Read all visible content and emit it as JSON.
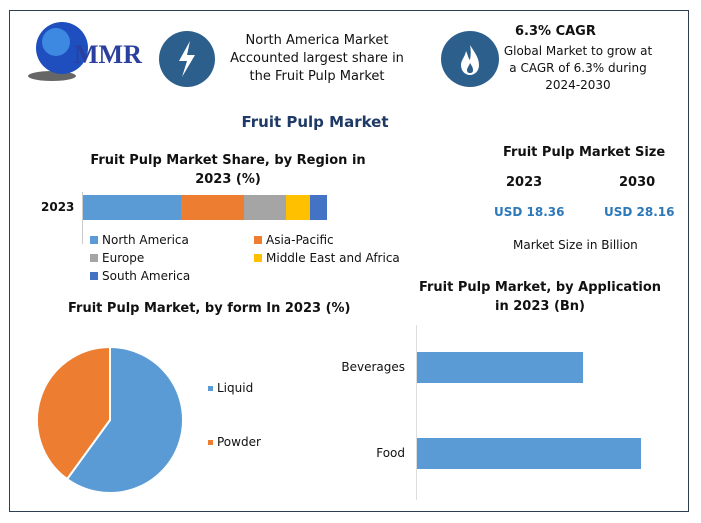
{
  "header": {
    "logo_text": "MMR",
    "box1_text": "North America Market Accounted largest share in the Fruit Pulp Market",
    "box1_icon": "lightning-icon",
    "box2_title": "6.3% CAGR",
    "box2_text": "Global Market to grow at a CAGR of 6.3% during 2024-2030",
    "box2_icon": "flame-icon"
  },
  "title": "Fruit Pulp Market",
  "market_size": {
    "title": "Fruit Pulp Market Size",
    "years": [
      "2023",
      "2030"
    ],
    "values": [
      "USD 18.36",
      "USD 28.16"
    ],
    "note": "Market Size in Billion"
  },
  "colors": {
    "accent": "#2c5f8c",
    "value": "#2c78b8"
  },
  "chart_data": [
    {
      "type": "bar",
      "orientation": "horizontal-stacked",
      "title": "Fruit Pulp Market Share, by Region in 2023 (%)",
      "categories": [
        "2023"
      ],
      "series": [
        {
          "name": "North America",
          "values": [
            40
          ],
          "color": "#5b9bd5"
        },
        {
          "name": "Asia-Pacific",
          "values": [
            26
          ],
          "color": "#ed7d31"
        },
        {
          "name": "Europe",
          "values": [
            17
          ],
          "color": "#a5a5a5"
        },
        {
          "name": "Middle East and Africa",
          "values": [
            10
          ],
          "color": "#ffc000"
        },
        {
          "name": "South America",
          "values": [
            7
          ],
          "color": "#4472c4"
        }
      ],
      "legend": "bottom"
    },
    {
      "type": "pie",
      "title": "Fruit Pulp Market, by form In 2023 (%)",
      "labels": [
        "Liquid",
        "Powder"
      ],
      "values": [
        60,
        40
      ],
      "colors": [
        "#5b9bd5",
        "#ed7d31"
      ],
      "legend": "right"
    },
    {
      "type": "bar",
      "orientation": "horizontal",
      "title": "Fruit Pulp Market, by Application in 2023 (Bn)",
      "categories": [
        "Beverages",
        "Food"
      ],
      "values": [
        7.8,
        10.5
      ],
      "color": "#5b9bd5"
    }
  ]
}
